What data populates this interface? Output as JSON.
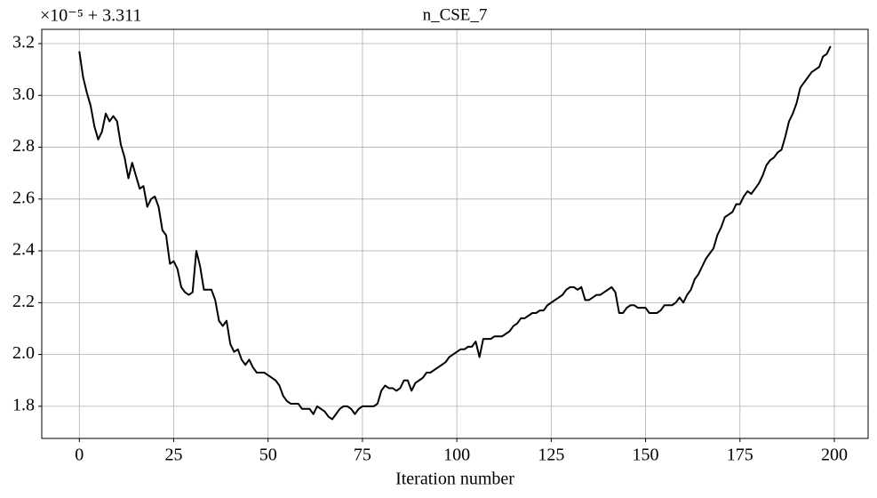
{
  "chart_data": {
    "type": "line",
    "title": "n_CSE_7",
    "xlabel": "Iteration number",
    "offset_label": "×10⁻⁵ + 3.311",
    "x": [
      0,
      1,
      2,
      3,
      4,
      5,
      6,
      7,
      8,
      9,
      10,
      11,
      12,
      13,
      14,
      15,
      16,
      17,
      18,
      19,
      20,
      21,
      22,
      23,
      24,
      25,
      26,
      27,
      28,
      29,
      30,
      31,
      32,
      33,
      34,
      35,
      36,
      37,
      38,
      39,
      40,
      41,
      42,
      43,
      44,
      45,
      46,
      47,
      48,
      49,
      50,
      51,
      52,
      53,
      54,
      55,
      56,
      57,
      58,
      59,
      60,
      61,
      62,
      63,
      64,
      65,
      66,
      67,
      68,
      69,
      70,
      71,
      72,
      73,
      74,
      75,
      76,
      77,
      78,
      79,
      80,
      81,
      82,
      83,
      84,
      85,
      86,
      87,
      88,
      89,
      90,
      91,
      92,
      93,
      94,
      95,
      96,
      97,
      98,
      99,
      100,
      101,
      102,
      103,
      104,
      105,
      106,
      107,
      108,
      109,
      110,
      111,
      112,
      113,
      114,
      115,
      116,
      117,
      118,
      119,
      120,
      121,
      122,
      123,
      124,
      125,
      126,
      127,
      128,
      129,
      130,
      131,
      132,
      133,
      134,
      135,
      136,
      137,
      138,
      139,
      140,
      141,
      142,
      143,
      144,
      145,
      146,
      147,
      148,
      149,
      150,
      151,
      152,
      153,
      154,
      155,
      156,
      157,
      158,
      159,
      160,
      161,
      162,
      163,
      164,
      165,
      166,
      167,
      168,
      169,
      170,
      171,
      172,
      173,
      174,
      175,
      176,
      177,
      178,
      179,
      180,
      181,
      182,
      183,
      184,
      185,
      186,
      187,
      188,
      189,
      190,
      191,
      192,
      193,
      194,
      195,
      196,
      197,
      198,
      199
    ],
    "series": [
      {
        "color": "#000000",
        "values": [
          3.17,
          3.07,
          3.01,
          2.96,
          2.88,
          2.83,
          2.86,
          2.93,
          2.9,
          2.92,
          2.9,
          2.81,
          2.76,
          2.68,
          2.74,
          2.69,
          2.64,
          2.65,
          2.57,
          2.6,
          2.61,
          2.57,
          2.48,
          2.46,
          2.35,
          2.36,
          2.33,
          2.26,
          2.24,
          2.23,
          2.24,
          2.4,
          2.34,
          2.25,
          2.25,
          2.25,
          2.21,
          2.13,
          2.11,
          2.13,
          2.04,
          2.01,
          2.02,
          1.98,
          1.96,
          1.98,
          1.95,
          1.93,
          1.93,
          1.93,
          1.92,
          1.91,
          1.9,
          1.88,
          1.84,
          1.82,
          1.81,
          1.81,
          1.81,
          1.79,
          1.79,
          1.79,
          1.77,
          1.8,
          1.79,
          1.78,
          1.76,
          1.75,
          1.77,
          1.79,
          1.8,
          1.8,
          1.79,
          1.77,
          1.79,
          1.8,
          1.8,
          1.8,
          1.8,
          1.81,
          1.86,
          1.88,
          1.87,
          1.87,
          1.86,
          1.87,
          1.9,
          1.9,
          1.86,
          1.89,
          1.9,
          1.91,
          1.93,
          1.93,
          1.94,
          1.95,
          1.96,
          1.97,
          1.99,
          2.0,
          2.01,
          2.02,
          2.02,
          2.03,
          2.03,
          2.05,
          1.99,
          2.06,
          2.06,
          2.06,
          2.07,
          2.07,
          2.07,
          2.08,
          2.09,
          2.11,
          2.12,
          2.14,
          2.14,
          2.15,
          2.16,
          2.16,
          2.17,
          2.17,
          2.19,
          2.2,
          2.21,
          2.22,
          2.23,
          2.25,
          2.26,
          2.26,
          2.25,
          2.26,
          2.21,
          2.21,
          2.22,
          2.23,
          2.23,
          2.24,
          2.25,
          2.26,
          2.24,
          2.16,
          2.16,
          2.18,
          2.19,
          2.19,
          2.18,
          2.18,
          2.18,
          2.16,
          2.16,
          2.16,
          2.17,
          2.19,
          2.19,
          2.19,
          2.2,
          2.22,
          2.2,
          2.23,
          2.25,
          2.29,
          2.31,
          2.34,
          2.37,
          2.39,
          2.41,
          2.46,
          2.49,
          2.53,
          2.54,
          2.55,
          2.58,
          2.58,
          2.61,
          2.63,
          2.62,
          2.64,
          2.66,
          2.69,
          2.73,
          2.75,
          2.76,
          2.78,
          2.79,
          2.84,
          2.9,
          2.93,
          2.97,
          3.03,
          3.05,
          3.07,
          3.09,
          3.1,
          3.11,
          3.15,
          3.16,
          3.19
        ]
      }
    ],
    "xlim": [
      -9.95,
      208.95
    ],
    "ylim": [
      1.676,
      3.255
    ],
    "xticks": [
      0,
      25,
      50,
      75,
      100,
      125,
      150,
      175,
      200
    ],
    "yticks": [
      1.8,
      {
        "value": 2,
        "label": "2.0"
      },
      2.2,
      2.4,
      2.6,
      2.8,
      {
        "value": 3,
        "label": "3.0"
      },
      3.2
    ],
    "grid": true
  }
}
